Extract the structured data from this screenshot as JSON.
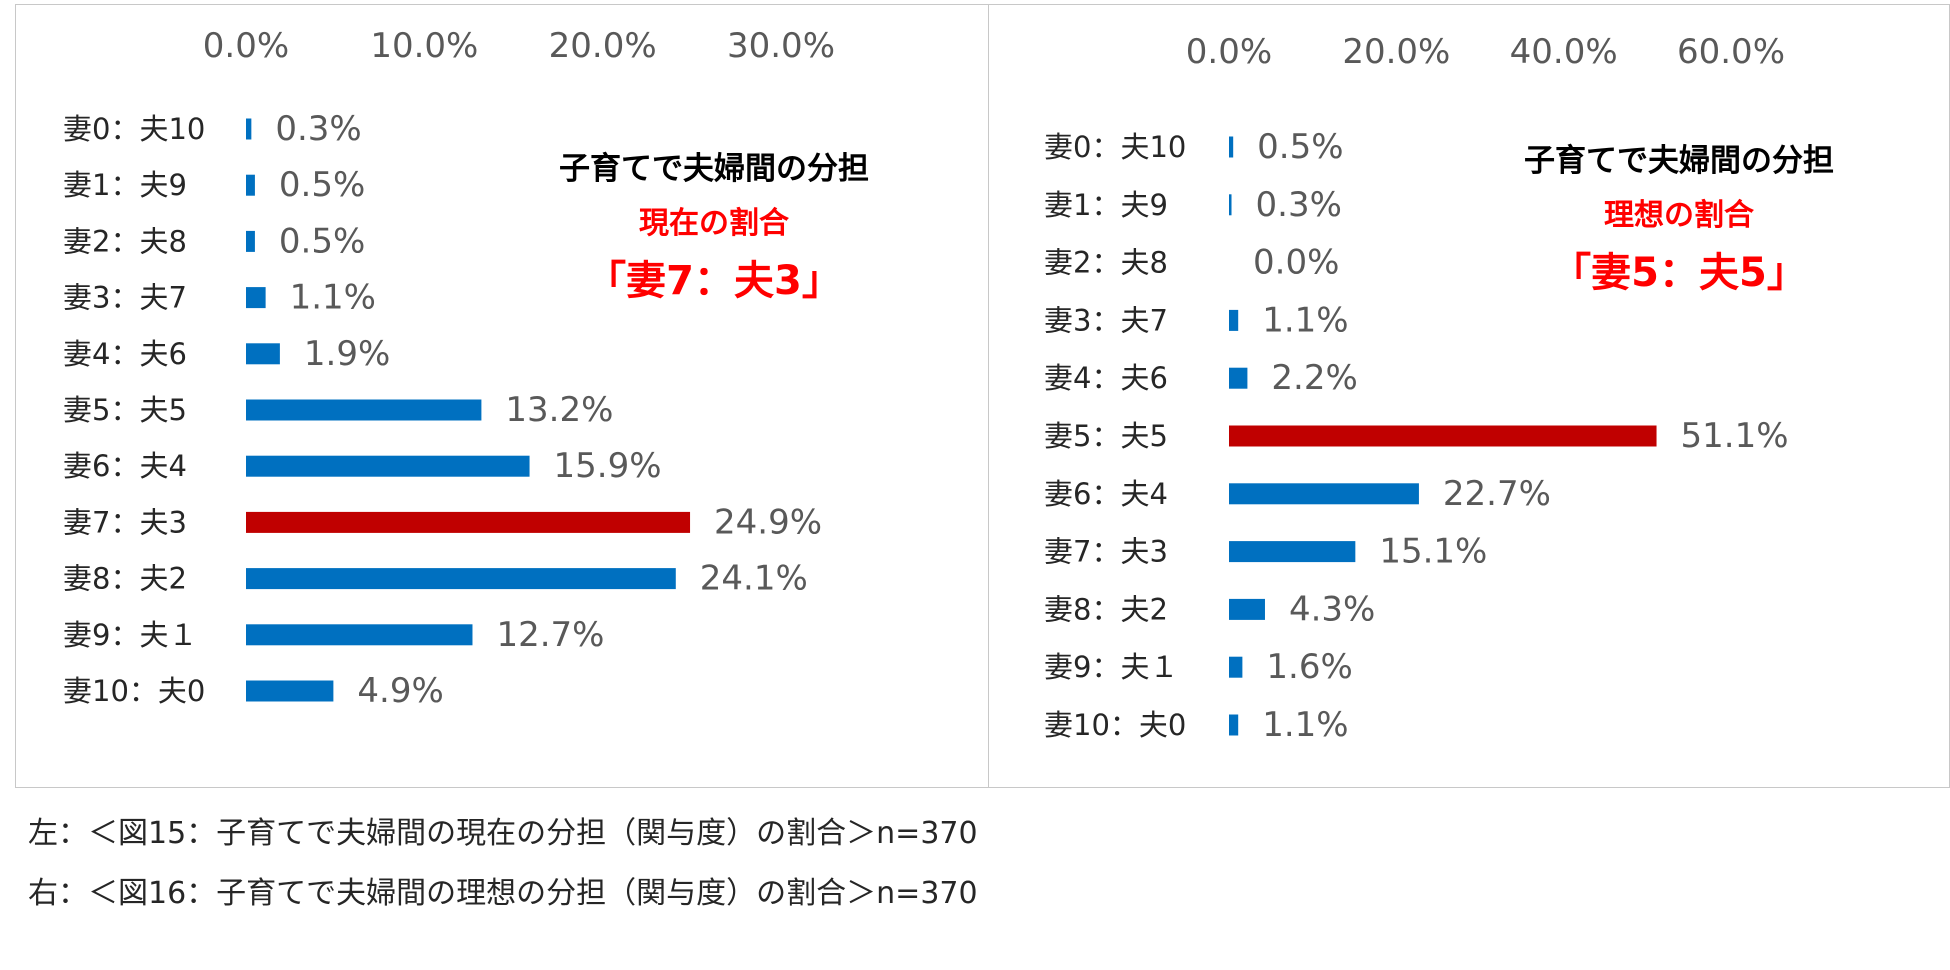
{
  "chart_data": [
    {
      "type": "bar",
      "orientation": "horizontal",
      "xlim": [
        0,
        30
      ],
      "x_ticks": [
        "0.0%",
        "10.0%",
        "20.0%",
        "30.0%"
      ],
      "x_tick_values": [
        0,
        10,
        20,
        30
      ],
      "categories": [
        "妻0：夫10",
        "妻1：夫9",
        "妻2：夫8",
        "妻3：夫7",
        "妻4：夫6",
        "妻5：夫5",
        "妻6：夫4",
        "妻7：夫3",
        "妻8：夫2",
        "妻9：夫１",
        "妻10：夫0"
      ],
      "values": [
        0.3,
        0.5,
        0.5,
        1.1,
        1.9,
        13.2,
        15.9,
        24.9,
        24.1,
        12.7,
        4.9
      ],
      "value_labels": [
        "0.3%",
        "0.5%",
        "0.5%",
        "1.1%",
        "1.9%",
        "13.2%",
        "15.9%",
        "24.9%",
        "24.1%",
        "12.7%",
        "4.9%"
      ],
      "highlight_index": 7,
      "bar_color": "#0070c0",
      "highlight_color": "#c00000",
      "annotation": {
        "title": "子育てで夫婦間の分担",
        "subtitle": "現在の割合",
        "ratio": "「妻7：夫3」"
      },
      "grid": false,
      "legend": "none"
    },
    {
      "type": "bar",
      "orientation": "horizontal",
      "xlim": [
        0,
        60
      ],
      "x_ticks": [
        "0.0%",
        "20.0%",
        "40.0%",
        "60.0%"
      ],
      "x_tick_values": [
        0,
        20,
        40,
        60
      ],
      "categories": [
        "妻0：夫10",
        "妻1：夫9",
        "妻2：夫8",
        "妻3：夫7",
        "妻4：夫6",
        "妻5：夫5",
        "妻6：夫4",
        "妻7：夫3",
        "妻8：夫2",
        "妻9：夫１",
        "妻10：夫0"
      ],
      "values": [
        0.5,
        0.3,
        0.0,
        1.1,
        2.2,
        51.1,
        22.7,
        15.1,
        4.3,
        1.6,
        1.1
      ],
      "value_labels": [
        "0.5%",
        "0.3%",
        "0.0%",
        "1.1%",
        "2.2%",
        "51.1%",
        "22.7%",
        "15.1%",
        "4.3%",
        "1.6%",
        "1.1%"
      ],
      "highlight_index": 5,
      "bar_color": "#0070c0",
      "highlight_color": "#c00000",
      "annotation": {
        "title": "子育てで夫婦間の分担",
        "subtitle": "理想の割合",
        "ratio": "「妻5：夫5」"
      },
      "grid": false,
      "legend": "none"
    }
  ],
  "captions": [
    "左：＜図15：子育てで夫婦間の現在の分担（関与度）の割合＞n=370",
    "右：＜図16：子育てで夫婦間の理想の分担（関与度）の割合＞n=370"
  ]
}
